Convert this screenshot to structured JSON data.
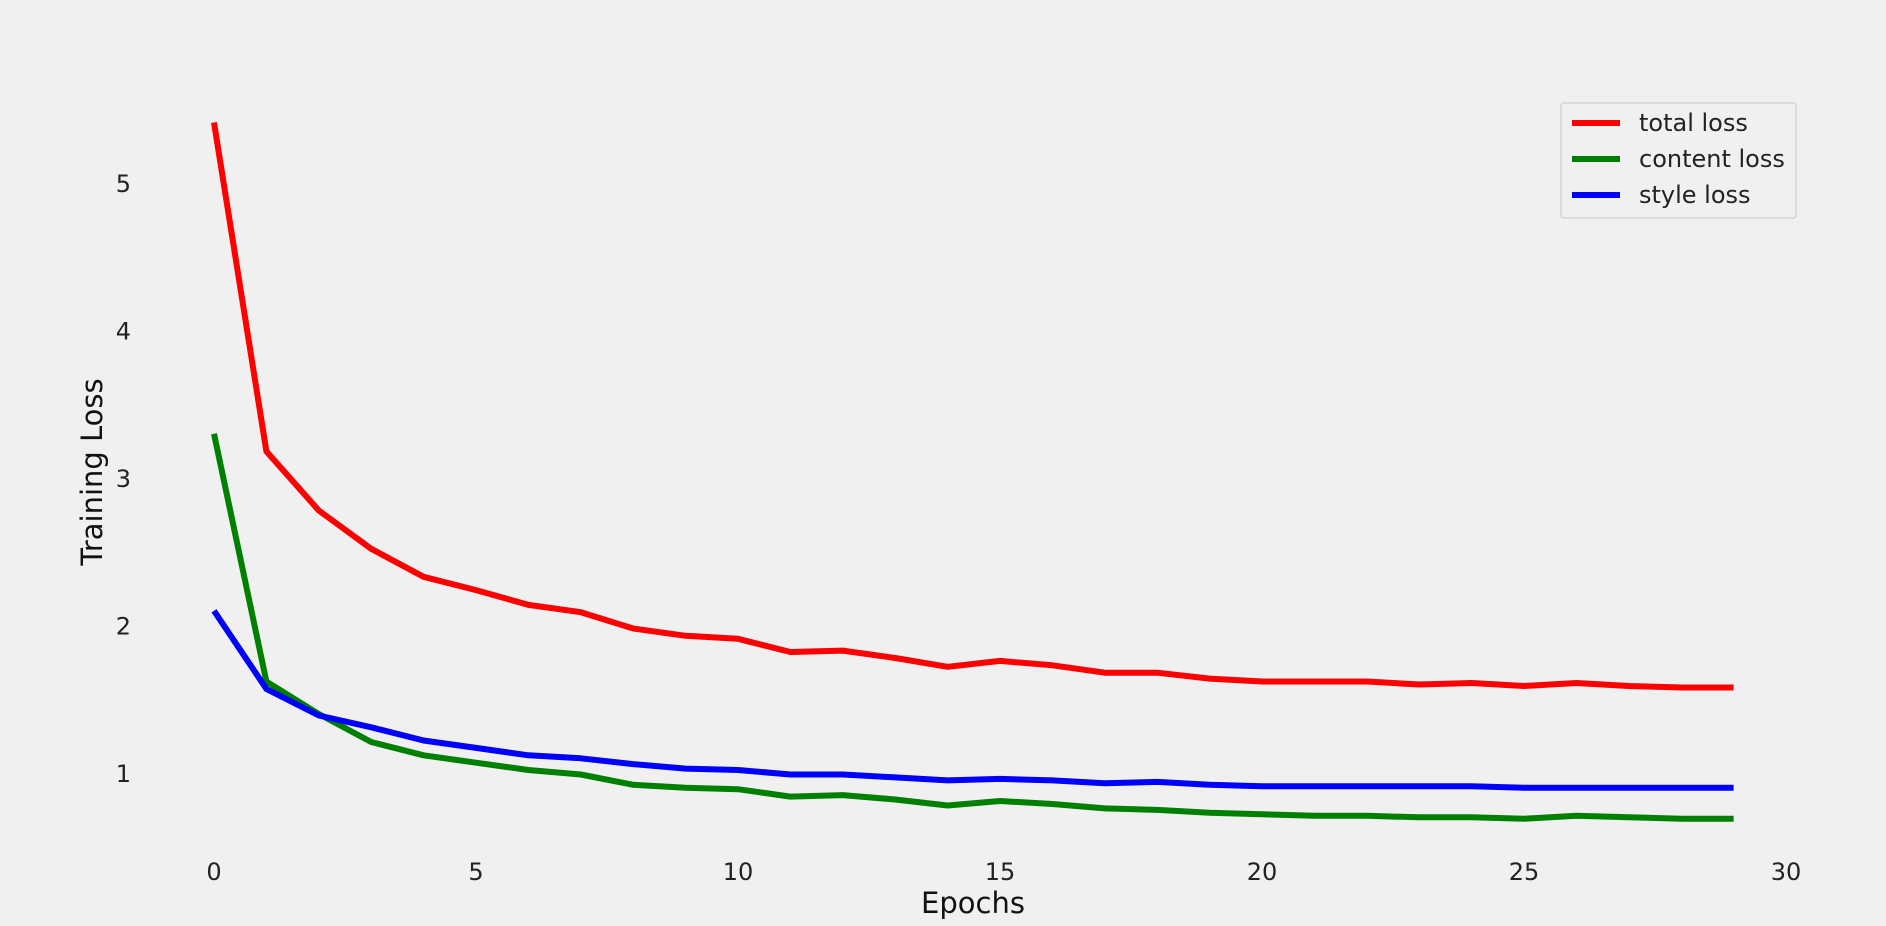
{
  "chart_data": {
    "type": "line",
    "title": "",
    "xlabel": "Epochs",
    "ylabel": "Training Loss",
    "xlim": [
      -4,
      30
    ],
    "ylim": [
      0.5,
      5.65
    ],
    "xticks": [
      0,
      5,
      10,
      15,
      20,
      25,
      30
    ],
    "yticks": [
      1,
      2,
      3,
      4,
      5
    ],
    "grid": false,
    "legend_position": "top-right",
    "background": "#f0f0f0",
    "x": [
      0,
      1,
      2,
      3,
      4,
      5,
      6,
      7,
      8,
      9,
      10,
      11,
      12,
      13,
      14,
      15,
      16,
      17,
      18,
      19,
      20,
      21,
      22,
      23,
      24,
      25,
      26,
      27,
      28,
      29
    ],
    "series": [
      {
        "name": "total loss",
        "color": "#ff0000",
        "values": [
          5.41,
          3.18,
          2.78,
          2.52,
          2.33,
          2.24,
          2.14,
          2.09,
          1.98,
          1.93,
          1.91,
          1.82,
          1.83,
          1.78,
          1.72,
          1.76,
          1.73,
          1.68,
          1.68,
          1.64,
          1.62,
          1.62,
          1.62,
          1.6,
          1.61,
          1.59,
          1.61,
          1.59,
          1.58,
          1.58
        ]
      },
      {
        "name": "content loss",
        "color": "#008000",
        "values": [
          3.3,
          1.62,
          1.4,
          1.21,
          1.12,
          1.07,
          1.02,
          0.99,
          0.92,
          0.9,
          0.89,
          0.84,
          0.85,
          0.82,
          0.78,
          0.81,
          0.79,
          0.76,
          0.75,
          0.73,
          0.72,
          0.71,
          0.71,
          0.7,
          0.7,
          0.69,
          0.71,
          0.7,
          0.69,
          0.69
        ]
      },
      {
        "name": "style loss",
        "color": "#0000ff",
        "values": [
          2.1,
          1.57,
          1.39,
          1.31,
          1.22,
          1.17,
          1.12,
          1.1,
          1.06,
          1.03,
          1.02,
          0.99,
          0.99,
          0.97,
          0.95,
          0.96,
          0.95,
          0.93,
          0.94,
          0.92,
          0.91,
          0.91,
          0.91,
          0.91,
          0.91,
          0.9,
          0.9,
          0.9,
          0.9,
          0.9
        ]
      }
    ]
  }
}
